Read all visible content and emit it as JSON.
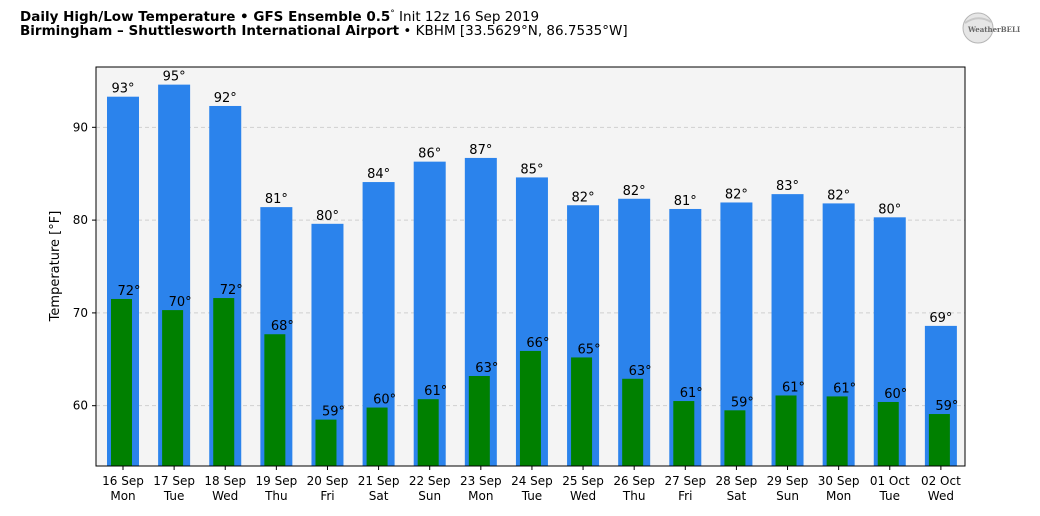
{
  "header": {
    "title_bold": "Daily High/Low Temperature • GFS Ensemble 0.5",
    "title_deg": "°",
    "title_rest": " Init 12z 16 Sep 2019",
    "location_bold": "Birmingham – Shuttlesworth International Airport",
    "location_rest": " • KBHM [33.5629°N, 86.7535°W]"
  },
  "logo": {
    "text": "WeatherBELL"
  },
  "colors": {
    "high": "#2b83ec",
    "low": "#008000",
    "plot_bg": "#f4f4f4"
  },
  "chart_data": {
    "type": "bar",
    "title": "Daily High/Low Temperature • GFS Ensemble 0.5° Init 12z 16 Sep 2019",
    "ylabel": "Temperature [°F]",
    "ylim": [
      53.5,
      96.5
    ],
    "yticks": [
      60,
      70,
      80,
      90
    ],
    "grid": true,
    "categories": [
      [
        "16 Sep",
        "Mon"
      ],
      [
        "17 Sep",
        "Tue"
      ],
      [
        "18 Sep",
        "Wed"
      ],
      [
        "19 Sep",
        "Thu"
      ],
      [
        "20 Sep",
        "Fri"
      ],
      [
        "21 Sep",
        "Sat"
      ],
      [
        "22 Sep",
        "Sun"
      ],
      [
        "23 Sep",
        "Mon"
      ],
      [
        "24 Sep",
        "Tue"
      ],
      [
        "25 Sep",
        "Wed"
      ],
      [
        "26 Sep",
        "Thu"
      ],
      [
        "27 Sep",
        "Fri"
      ],
      [
        "28 Sep",
        "Sat"
      ],
      [
        "29 Sep",
        "Sun"
      ],
      [
        "30 Sep",
        "Mon"
      ],
      [
        "01 Oct",
        "Tue"
      ],
      [
        "02 Oct",
        "Wed"
      ]
    ],
    "series": [
      {
        "values": [
          93.3,
          94.6,
          92.3,
          81.4,
          79.6,
          84.1,
          86.3,
          86.7,
          84.6,
          81.6,
          82.3,
          81.2,
          81.9,
          82.8,
          81.8,
          80.3,
          68.6
        ],
        "labels": [
          "93°",
          "95°",
          "92°",
          "81°",
          "80°",
          "84°",
          "86°",
          "87°",
          "85°",
          "82°",
          "82°",
          "81°",
          "82°",
          "83°",
          "82°",
          "80°",
          "69°"
        ]
      },
      {
        "values": [
          71.5,
          70.3,
          71.6,
          67.7,
          58.5,
          59.8,
          60.7,
          63.2,
          65.9,
          65.2,
          62.9,
          60.5,
          59.5,
          61.1,
          61.0,
          60.4,
          59.1
        ],
        "labels": [
          "72°",
          "70°",
          "72°",
          "68°",
          "59°",
          "60°",
          "61°",
          "63°",
          "66°",
          "65°",
          "63°",
          "61°",
          "59°",
          "61°",
          "61°",
          "60°",
          "59°"
        ]
      }
    ]
  }
}
